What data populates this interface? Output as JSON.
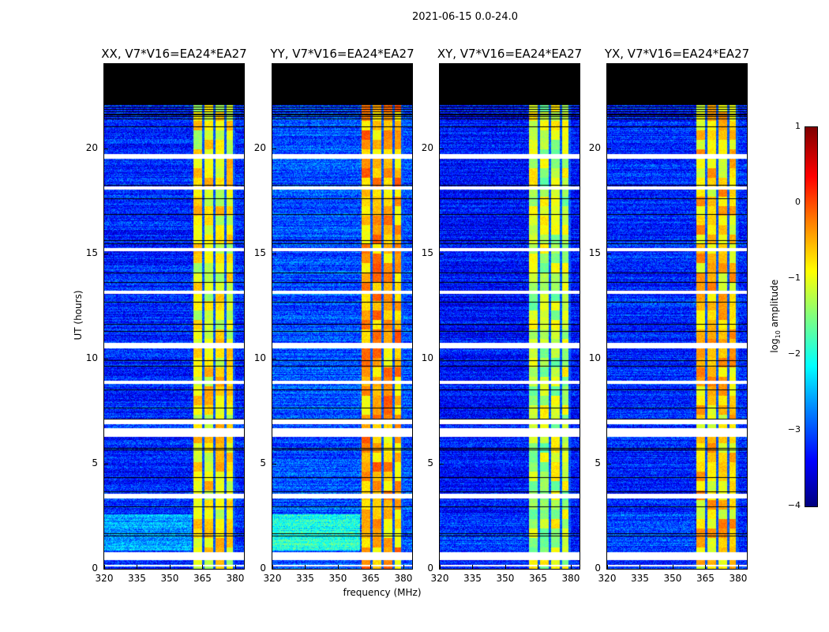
{
  "chart_data": {
    "type": "heatmap",
    "title": "2021-06-15 0.0-24.0",
    "xlabel": "frequency (MHz)",
    "ylabel": "UT (hours)",
    "xlim": [
      320,
      384
    ],
    "ylim": [
      0,
      24
    ],
    "xticks": [
      "320",
      "335",
      "350",
      "365",
      "380"
    ],
    "xtick_values": [
      320,
      335,
      350,
      365,
      380
    ],
    "yticks": [
      "0",
      "5",
      "10",
      "15",
      "20"
    ],
    "ytick_values": [
      0,
      5,
      10,
      15,
      20
    ],
    "panels": [
      {
        "title": "XX, V7*V16=EA24*EA27",
        "background_log_amp": -3.2,
        "band_log_amp": -1.0,
        "low_time_boost": 0.6
      },
      {
        "title": "YY, V7*V16=EA24*EA27",
        "background_log_amp": -3.0,
        "band_log_amp": -0.6,
        "low_time_boost": 1.0
      },
      {
        "title": "XY, V7*V16=EA24*EA27",
        "background_log_amp": -3.3,
        "band_log_amp": -1.3,
        "low_time_boost": 0.2
      },
      {
        "title": "YX, V7*V16=EA24*EA27",
        "background_log_amp": -3.2,
        "band_log_amp": -0.8,
        "low_time_boost": 0.2
      }
    ],
    "bright_band_mhz": [
      360.5,
      380
    ],
    "band_gaps_mhz": [
      365.3,
      370.3,
      375.2,
      379.2
    ],
    "no_data_hours": [
      22,
      24
    ],
    "flagged_hours": [
      [
        19.5,
        19.75
      ],
      [
        18.05,
        18.2
      ],
      [
        15.1,
        15.25
      ],
      [
        13.1,
        13.25
      ],
      [
        10.5,
        10.75
      ],
      [
        8.8,
        8.95
      ],
      [
        6.9,
        7.1
      ],
      [
        6.3,
        6.7
      ],
      [
        3.35,
        3.6
      ],
      [
        0.45,
        0.8
      ],
      [
        0.15,
        0.2
      ]
    ],
    "colorbar": {
      "label_prefix": "log",
      "label_sub": "10",
      "label_suffix": " amplitude",
      "ticks": [
        "1",
        "0",
        "−1",
        "−2",
        "−3",
        "−4"
      ],
      "tick_values": [
        1,
        0,
        -1,
        -2,
        -3,
        -4
      ],
      "range": [
        -4,
        1
      ],
      "colormap": "jet"
    }
  }
}
